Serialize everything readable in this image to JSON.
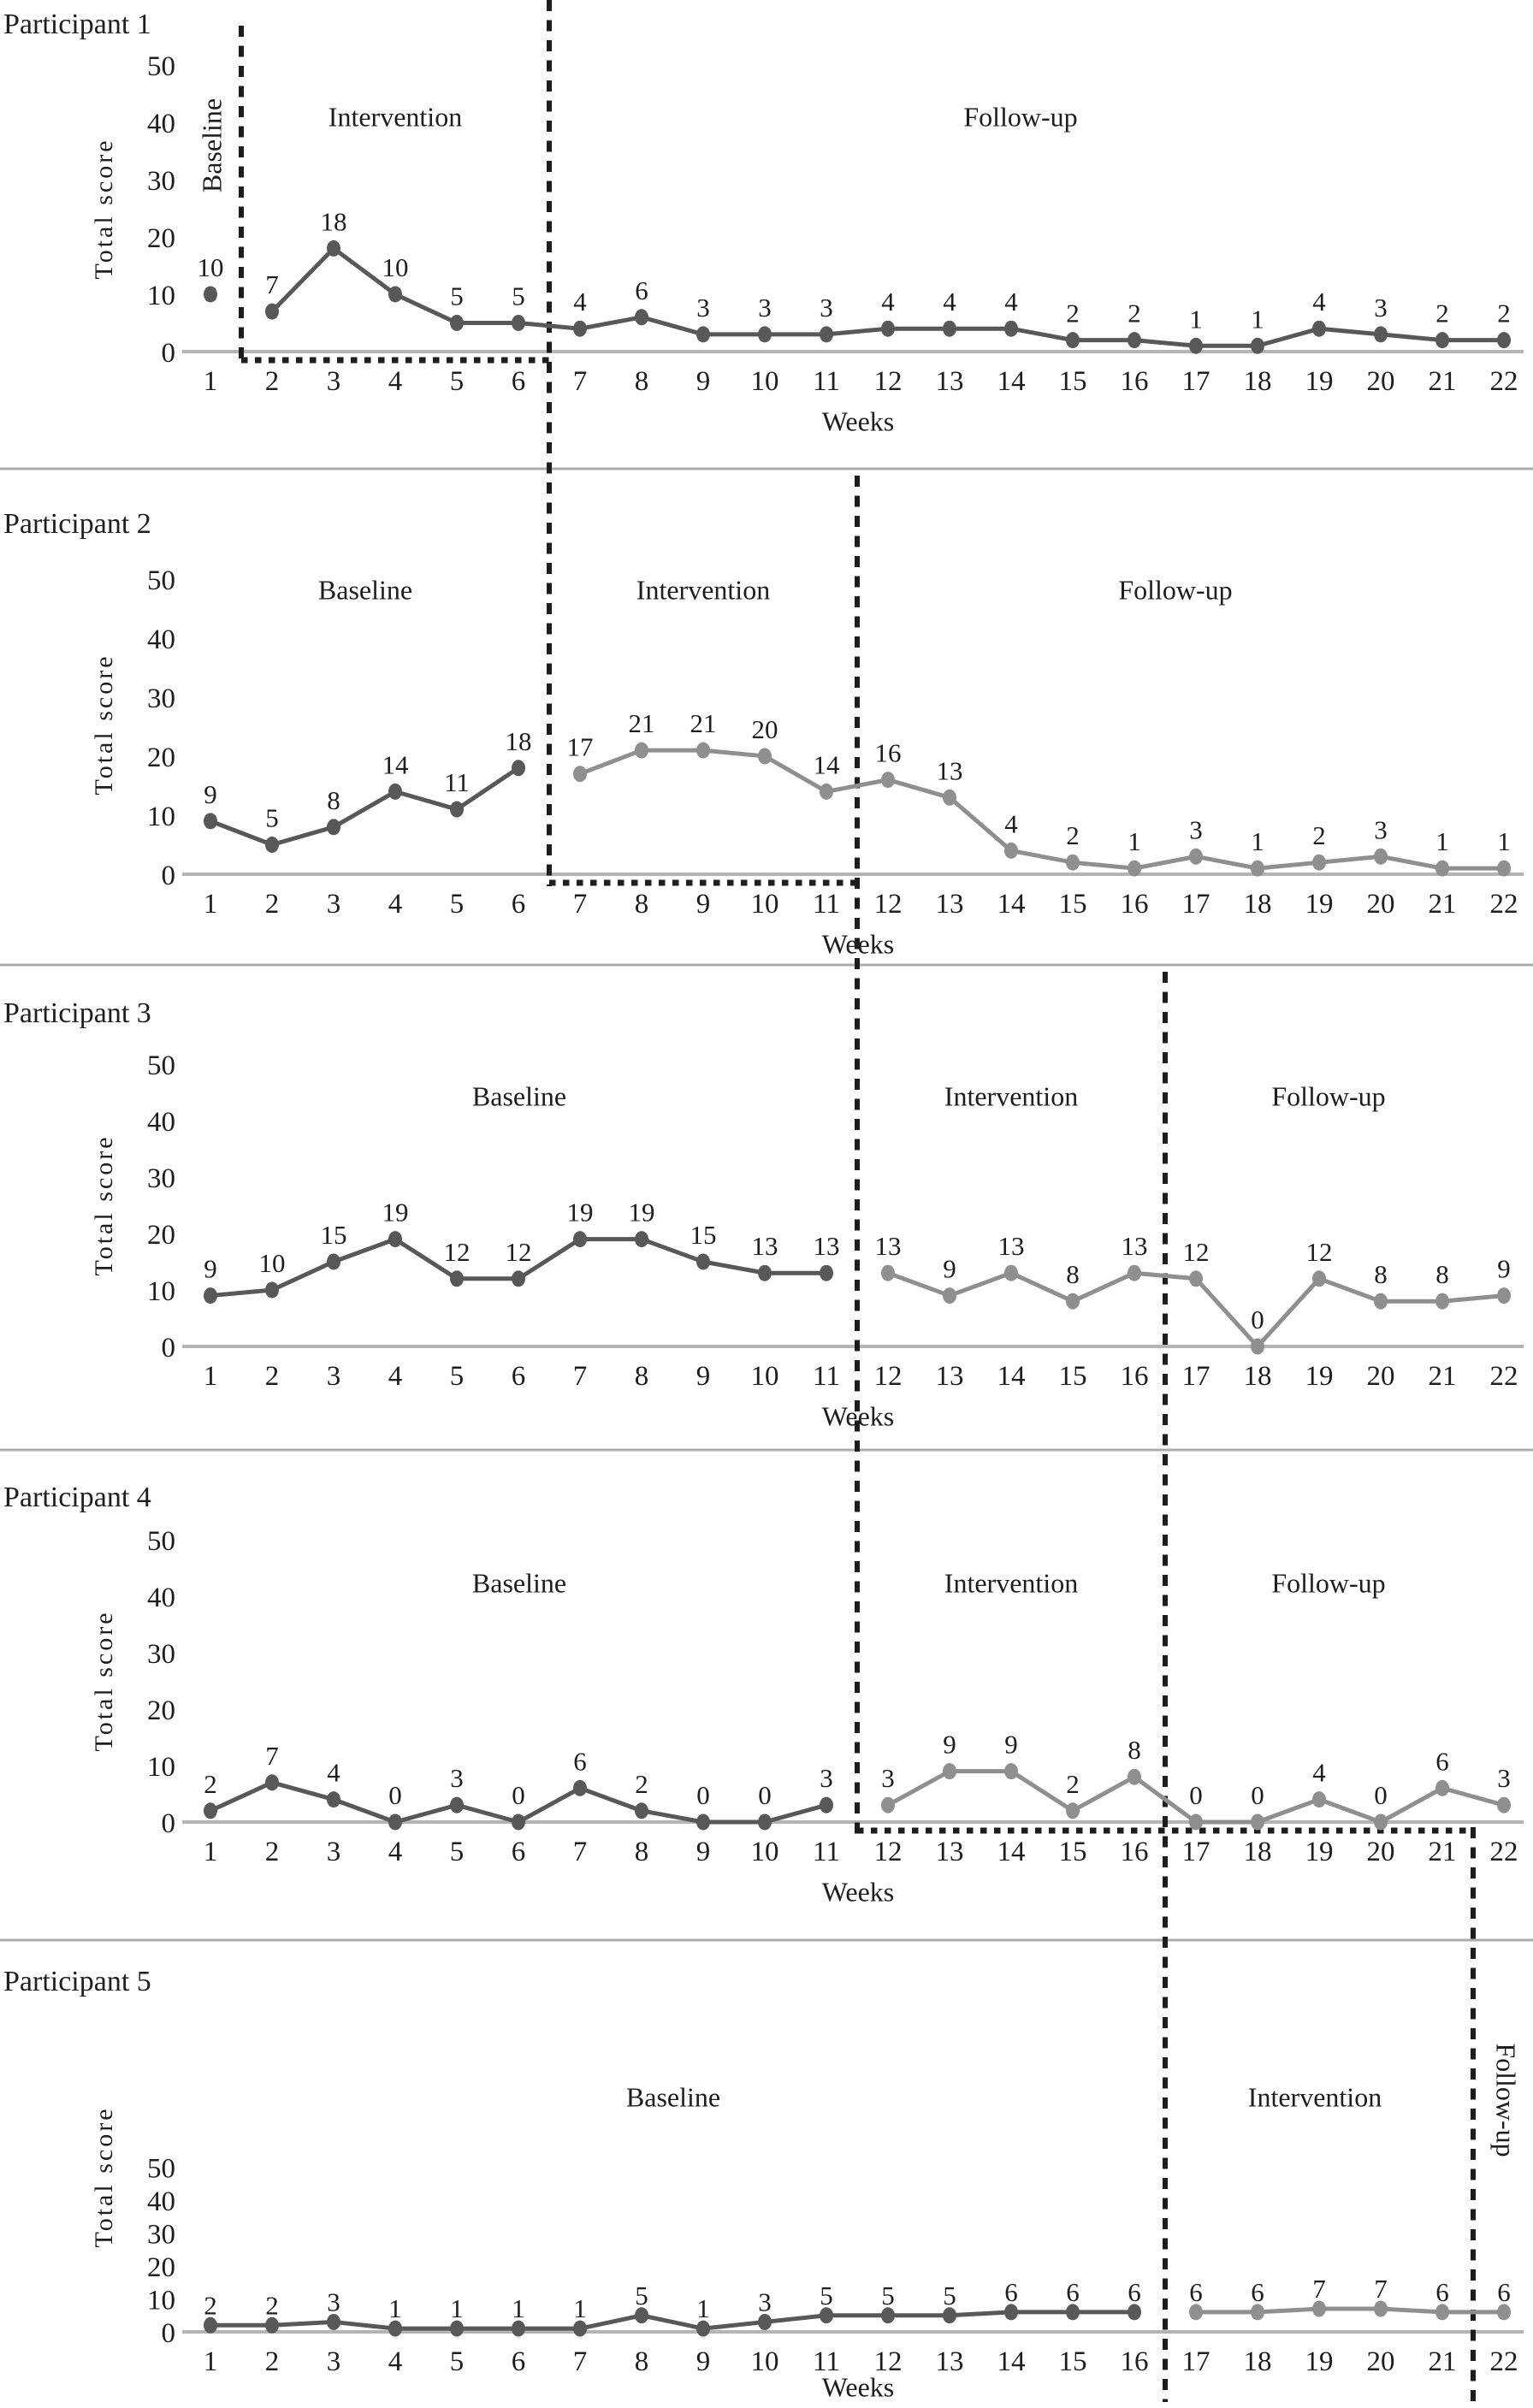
{
  "figure": {
    "weeks": [
      1,
      2,
      3,
      4,
      5,
      6,
      7,
      8,
      9,
      10,
      11,
      12,
      13,
      14,
      15,
      16,
      17,
      18,
      19,
      20,
      21,
      22
    ],
    "y_ticks": [
      0,
      10,
      20,
      30,
      40,
      50
    ],
    "colors": {
      "baseline_series": "#585858",
      "post_baseline_series": "#8f8f8f",
      "zero_line": "#b4b4b4",
      "panel_divider": "#ababab",
      "phase_boundary": "#1d1d1d",
      "text": "#1e1e1e"
    },
    "phase_boundaries": [
      {
        "week": 1.5,
        "panels": [
          1
        ]
      },
      {
        "week": 6.5,
        "panels": [
          1,
          2
        ]
      },
      {
        "week": 11.5,
        "panels": [
          2,
          3,
          4
        ]
      },
      {
        "week": 16.5,
        "panels": [
          3,
          4,
          5
        ]
      },
      {
        "week": 21.5,
        "panels": [
          4,
          5
        ]
      }
    ],
    "dotted_baseline_markers": [
      {
        "panel": 1,
        "from_week": 1.5,
        "to_week": 6.5
      },
      {
        "panel": 2,
        "from_week": 6.5,
        "to_week": 11.5
      },
      {
        "panel": 4,
        "from_week": 11.5,
        "to_week": 21.5
      }
    ]
  },
  "chart_data": [
    {
      "type": "line",
      "participant": "Participant 1",
      "xlabel": "Weeks",
      "ylabel": "Total score",
      "ylim": [
        0,
        50
      ],
      "values": [
        10,
        7,
        18,
        10,
        5,
        5,
        4,
        6,
        3,
        3,
        3,
        4,
        4,
        4,
        2,
        2,
        1,
        1,
        4,
        3,
        2,
        2
      ],
      "segments": [
        {
          "from_week": 1,
          "to_week": 1,
          "color": "baseline_series"
        },
        {
          "from_week": 2,
          "to_week": 22,
          "color": "baseline_series"
        }
      ],
      "phases": [
        {
          "label": "Baseline",
          "from_week": 1,
          "to_week": 1,
          "orientation": "vertical"
        },
        {
          "label": "Intervention",
          "from_week": 2,
          "to_week": 6,
          "orientation": "horizontal"
        },
        {
          "label": "Follow-up",
          "from_week": 7,
          "to_week": 22,
          "orientation": "horizontal"
        }
      ]
    },
    {
      "type": "line",
      "participant": "Participant 2",
      "xlabel": "Weeks",
      "ylabel": "Total score",
      "ylim": [
        0,
        50
      ],
      "values": [
        9,
        5,
        8,
        14,
        11,
        18,
        17,
        21,
        21,
        20,
        14,
        16,
        13,
        4,
        2,
        1,
        3,
        1,
        2,
        3,
        1,
        1
      ],
      "segments": [
        {
          "from_week": 1,
          "to_week": 6,
          "color": "baseline_series"
        },
        {
          "from_week": 7,
          "to_week": 22,
          "color": "post_baseline_series"
        }
      ],
      "phases": [
        {
          "label": "Baseline",
          "from_week": 1,
          "to_week": 6,
          "orientation": "horizontal"
        },
        {
          "label": "Intervention",
          "from_week": 7,
          "to_week": 11,
          "orientation": "horizontal"
        },
        {
          "label": "Follow-up",
          "from_week": 12,
          "to_week": 22,
          "orientation": "horizontal"
        }
      ]
    },
    {
      "type": "line",
      "participant": "Participant 3",
      "xlabel": "Weeks",
      "ylabel": "Total score",
      "ylim": [
        0,
        50
      ],
      "values": [
        9,
        10,
        15,
        19,
        12,
        12,
        19,
        19,
        15,
        13,
        13,
        13,
        9,
        13,
        8,
        13,
        12,
        0,
        12,
        8,
        8,
        9
      ],
      "segments": [
        {
          "from_week": 1,
          "to_week": 11,
          "color": "baseline_series"
        },
        {
          "from_week": 12,
          "to_week": 22,
          "color": "post_baseline_series"
        }
      ],
      "phases": [
        {
          "label": "Baseline",
          "from_week": 1,
          "to_week": 11,
          "orientation": "horizontal"
        },
        {
          "label": "Intervention",
          "from_week": 12,
          "to_week": 16,
          "orientation": "horizontal"
        },
        {
          "label": "Follow-up",
          "from_week": 17,
          "to_week": 22,
          "orientation": "horizontal"
        }
      ]
    },
    {
      "type": "line",
      "participant": "Participant 4",
      "xlabel": "Weeks",
      "ylabel": "Total score",
      "ylim": [
        0,
        50
      ],
      "values": [
        2,
        7,
        4,
        0,
        3,
        0,
        6,
        2,
        0,
        0,
        3,
        3,
        9,
        9,
        2,
        8,
        0,
        0,
        4,
        0,
        6,
        3
      ],
      "segments": [
        {
          "from_week": 1,
          "to_week": 11,
          "color": "baseline_series"
        },
        {
          "from_week": 12,
          "to_week": 22,
          "color": "post_baseline_series"
        }
      ],
      "phases": [
        {
          "label": "Baseline",
          "from_week": 1,
          "to_week": 11,
          "orientation": "horizontal"
        },
        {
          "label": "Intervention",
          "from_week": 12,
          "to_week": 16,
          "orientation": "horizontal"
        },
        {
          "label": "Follow-up",
          "from_week": 17,
          "to_week": 22,
          "orientation": "horizontal"
        }
      ]
    },
    {
      "type": "line",
      "participant": "Participant 5",
      "xlabel": "Weeks",
      "ylabel": "Total score",
      "ylim": [
        0,
        50
      ],
      "values": [
        2,
        2,
        3,
        1,
        1,
        1,
        1,
        5,
        1,
        3,
        5,
        5,
        5,
        6,
        6,
        6,
        6,
        6,
        7,
        7,
        6,
        6
      ],
      "segments": [
        {
          "from_week": 1,
          "to_week": 16,
          "color": "baseline_series"
        },
        {
          "from_week": 17,
          "to_week": 22,
          "color": "post_baseline_series"
        }
      ],
      "phases": [
        {
          "label": "Baseline",
          "from_week": 1,
          "to_week": 16,
          "orientation": "horizontal"
        },
        {
          "label": "Intervention",
          "from_week": 17,
          "to_week": 21,
          "orientation": "horizontal"
        },
        {
          "label": "Follow-up",
          "from_week": 22,
          "to_week": 22,
          "orientation": "vertical"
        }
      ]
    }
  ]
}
